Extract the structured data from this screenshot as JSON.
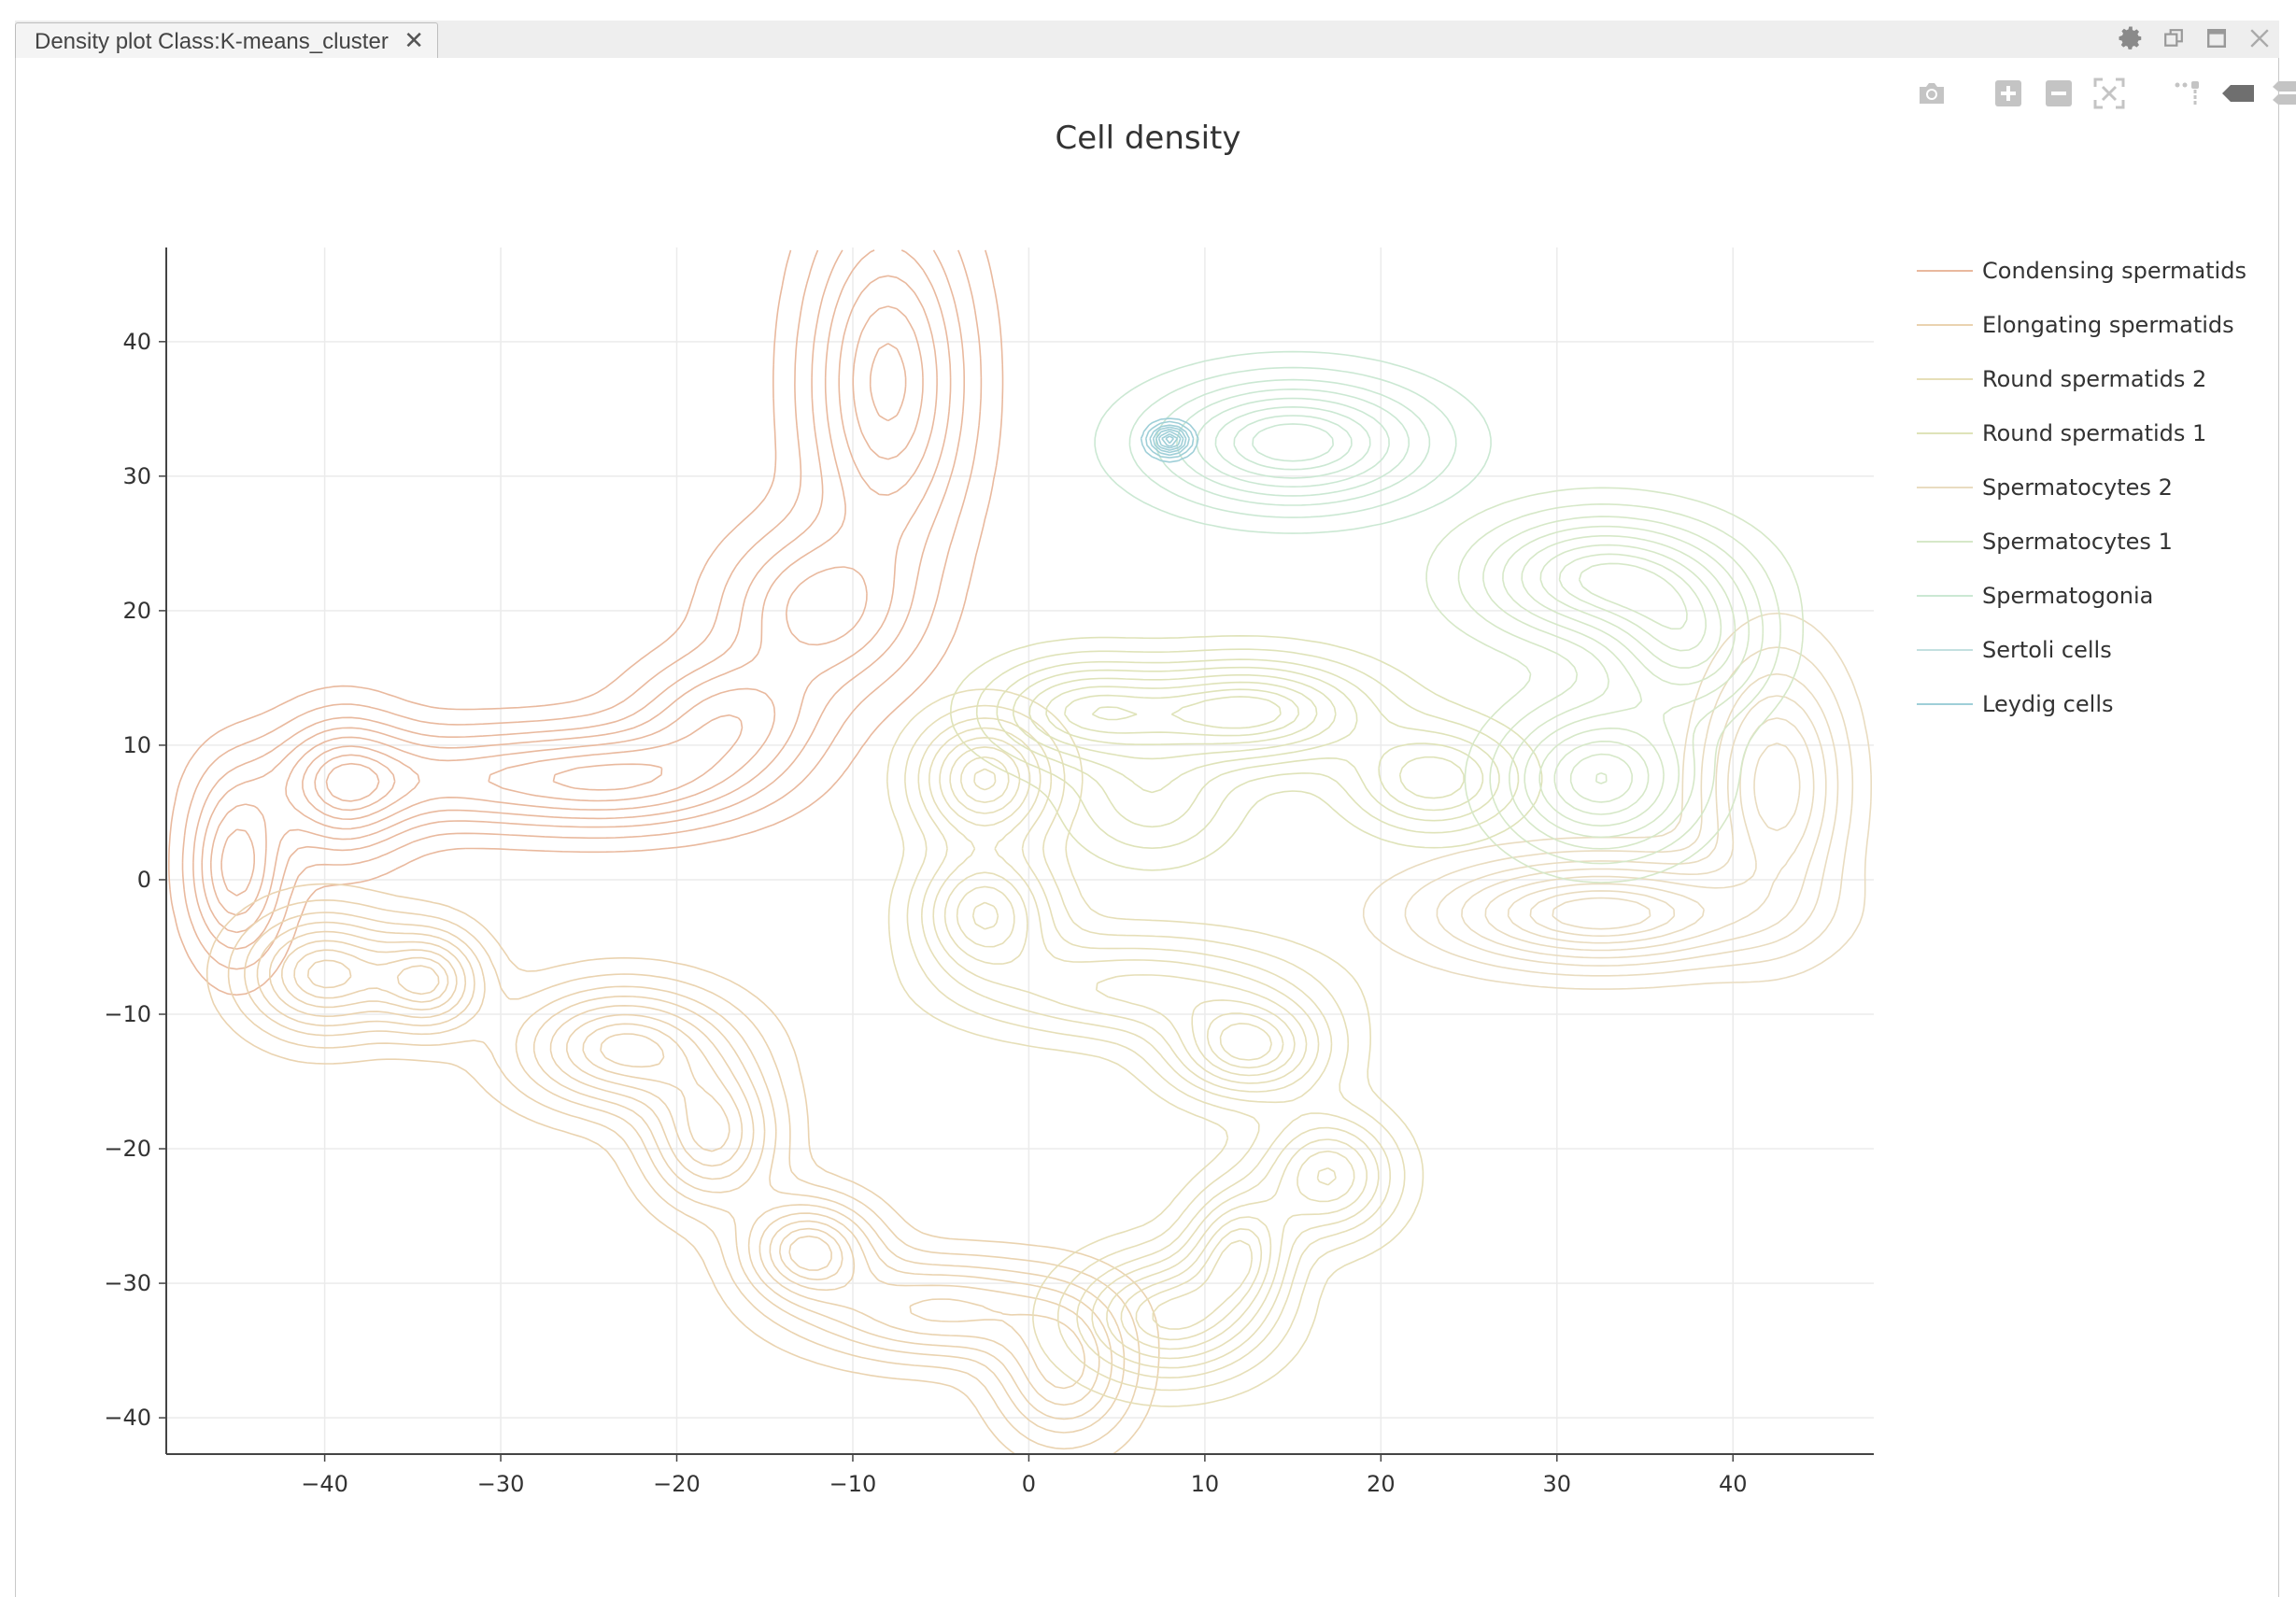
{
  "window": {
    "tab_title": "Density plot Class:K-means_cluster",
    "tab_close_glyph": "✕",
    "controls": [
      "gear-icon",
      "restore-icon",
      "maximize-icon",
      "close-icon"
    ]
  },
  "modebar": {
    "buttons": [
      "camera-icon",
      "zoom-in-icon",
      "zoom-out-icon",
      "autoscale-icon",
      "spike-lines-icon",
      "hover-closest-icon",
      "hover-compare-icon"
    ]
  },
  "chart_data": {
    "type": "contour",
    "title": "Cell density",
    "xlabel": "",
    "ylabel": "",
    "xlim": [
      -49,
      48
    ],
    "ylim": [
      -42.7,
      47
    ],
    "x_ticks": [
      -40,
      -30,
      -20,
      -10,
      0,
      10,
      20,
      30,
      40
    ],
    "y_ticks": [
      -40,
      -30,
      -20,
      -10,
      0,
      10,
      20,
      30,
      40
    ],
    "x_tick_labels": [
      "−40",
      "−30",
      "−20",
      "−10",
      "0",
      "10",
      "20",
      "30",
      "40"
    ],
    "y_tick_labels": [
      "−40",
      "−30",
      "−20",
      "−10",
      "0",
      "10",
      "20",
      "30",
      "40"
    ],
    "grid": true,
    "legend_position": "right",
    "series": [
      {
        "name": "Condensing spermatids",
        "color": "#e9b99e",
        "peaks": [
          {
            "x": -8,
            "y": 37,
            "sx": 3.0,
            "sy": 8.5,
            "w": 1.0
          },
          {
            "x": -12,
            "y": 20,
            "sx": 3.5,
            "sy": 4.0,
            "w": 0.7
          },
          {
            "x": -17,
            "y": 12,
            "sx": 3.5,
            "sy": 3.0,
            "w": 0.7
          },
          {
            "x": -23,
            "y": 7.5,
            "sx": 5.0,
            "sy": 2.5,
            "w": 0.8
          },
          {
            "x": -33,
            "y": 7.5,
            "sx": 6.0,
            "sy": 2.5,
            "w": 0.6
          },
          {
            "x": -39,
            "y": 7,
            "sx": 2.5,
            "sy": 3.5,
            "w": 0.8
          },
          {
            "x": -45,
            "y": 1,
            "sx": 1.8,
            "sy": 4.5,
            "w": 0.9
          }
        ]
      },
      {
        "name": "Elongating spermatids",
        "color": "#ead3b0",
        "peaks": [
          {
            "x": -40,
            "y": -7,
            "sx": 3.0,
            "sy": 3.0,
            "w": 0.8
          },
          {
            "x": -34,
            "y": -7.5,
            "sx": 2.0,
            "sy": 2.5,
            "w": 0.7
          },
          {
            "x": -23,
            "y": -12.5,
            "sx": 4.0,
            "sy": 3.0,
            "w": 0.8
          },
          {
            "x": -18,
            "y": -19,
            "sx": 2.5,
            "sy": 3.5,
            "w": 0.7
          },
          {
            "x": -12.5,
            "y": -27.5,
            "sx": 2.5,
            "sy": 2.5,
            "w": 0.8
          },
          {
            "x": -5,
            "y": -32,
            "sx": 5.0,
            "sy": 2.5,
            "w": 0.6
          },
          {
            "x": 2,
            "y": -36.5,
            "sx": 2.5,
            "sy": 3.5,
            "w": 0.6
          }
        ]
      },
      {
        "name": "Round spermatids 2",
        "color": "#e6dfb8",
        "peaks": [
          {
            "x": -2.5,
            "y": 7.5,
            "sx": 2.5,
            "sy": 3.0,
            "w": 0.8
          },
          {
            "x": -2.5,
            "y": -2.5,
            "sx": 2.5,
            "sy": 3.0,
            "w": 0.7
          },
          {
            "x": 6,
            "y": -8,
            "sx": 6.0,
            "sy": 2.5,
            "w": 0.5
          },
          {
            "x": 12.5,
            "y": -12.5,
            "sx": 3.0,
            "sy": 2.5,
            "w": 0.8
          },
          {
            "x": 17,
            "y": -22,
            "sx": 2.5,
            "sy": 3.0,
            "w": 0.7
          },
          {
            "x": 12,
            "y": -27.5,
            "sx": 2.0,
            "sy": 3.0,
            "w": 0.7
          },
          {
            "x": 8,
            "y": -32.5,
            "sx": 3.5,
            "sy": 3.0,
            "w": 0.8
          }
        ]
      },
      {
        "name": "Round spermatids 1",
        "color": "#dfe3b9",
        "peaks": [
          {
            "x": 3,
            "y": 12.5,
            "sx": 3.5,
            "sy": 2.5,
            "w": 0.7
          },
          {
            "x": 12.5,
            "y": 12.5,
            "sx": 4.5,
            "sy": 2.5,
            "w": 0.9
          },
          {
            "x": 23,
            "y": 7.5,
            "sx": 3.0,
            "sy": 2.5,
            "w": 0.6
          },
          {
            "x": 7,
            "y": 6,
            "sx": 3.0,
            "sy": 3.0,
            "w": 0.35
          }
        ]
      },
      {
        "name": "Spermatocytes 2",
        "color": "#e9dcc0",
        "peaks": [
          {
            "x": 32.5,
            "y": -2.5,
            "sx": 6.0,
            "sy": 2.5,
            "w": 0.9
          },
          {
            "x": 42.5,
            "y": 7,
            "sx": 2.5,
            "sy": 6.0,
            "w": 0.7
          }
        ]
      },
      {
        "name": "Spermatocytes 1",
        "color": "#d6e8c8",
        "peaks": [
          {
            "x": 32.5,
            "y": 7.5,
            "sx": 3.5,
            "sy": 3.5,
            "w": 0.9
          },
          {
            "x": 32.5,
            "y": 22.5,
            "sx": 4.5,
            "sy": 3.0,
            "w": 0.9
          },
          {
            "x": 37.5,
            "y": 17.5,
            "sx": 3.0,
            "sy": 3.5,
            "w": 0.7
          }
        ]
      },
      {
        "name": "Spermatogonia",
        "color": "#cbe8d3",
        "peaks": [
          {
            "x": 15,
            "y": 32.5,
            "sx": 5.0,
            "sy": 3.0,
            "w": 1.0
          }
        ]
      },
      {
        "name": "Sertoli cells",
        "color": "#c3e0e0",
        "peaks": []
      },
      {
        "name": "Leydig cells",
        "color": "#9fcfd8",
        "peaks": [
          {
            "x": 8,
            "y": 32.7,
            "sx": 0.7,
            "sy": 0.7,
            "w": 1.0
          }
        ]
      }
    ]
  }
}
